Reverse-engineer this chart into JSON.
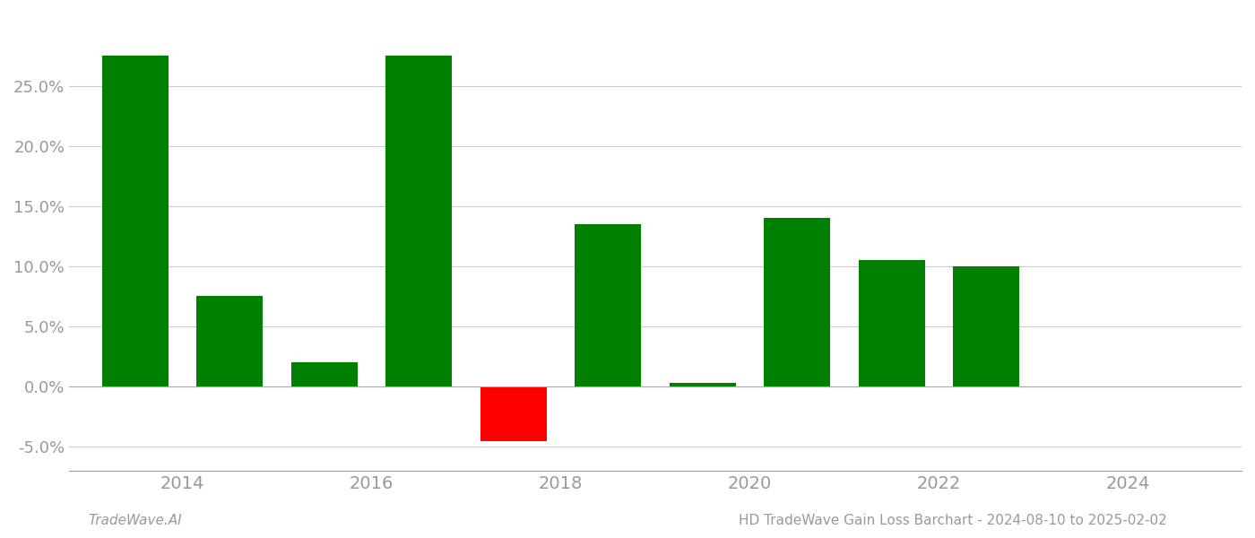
{
  "years": [
    2013.5,
    2014.5,
    2015.5,
    2016.5,
    2017.5,
    2018.5,
    2019.5,
    2020.5,
    2021.5,
    2022.5
  ],
  "values": [
    0.275,
    0.075,
    0.02,
    0.275,
    -0.045,
    0.135,
    0.003,
    0.14,
    0.105,
    0.1
  ],
  "bar_colors": [
    "#008000",
    "#008000",
    "#008000",
    "#008000",
    "#ff0000",
    "#008000",
    "#008000",
    "#008000",
    "#008000",
    "#008000"
  ],
  "title": "HD TradeWave Gain Loss Barchart - 2024-08-10 to 2025-02-02",
  "footer_left": "TradeWave.AI",
  "ylim": [
    -0.07,
    0.31
  ],
  "yticks": [
    -0.05,
    0.0,
    0.05,
    0.1,
    0.15,
    0.2,
    0.25
  ],
  "xtick_positions": [
    2014,
    2016,
    2018,
    2020,
    2022,
    2024
  ],
  "xlim_left": 2012.8,
  "xlim_right": 2025.2,
  "background_color": "#ffffff",
  "grid_color": "#cccccc",
  "bar_width": 0.7,
  "xlabel_color": "#999999",
  "ylabel_color": "#999999",
  "footer_color": "#999999"
}
